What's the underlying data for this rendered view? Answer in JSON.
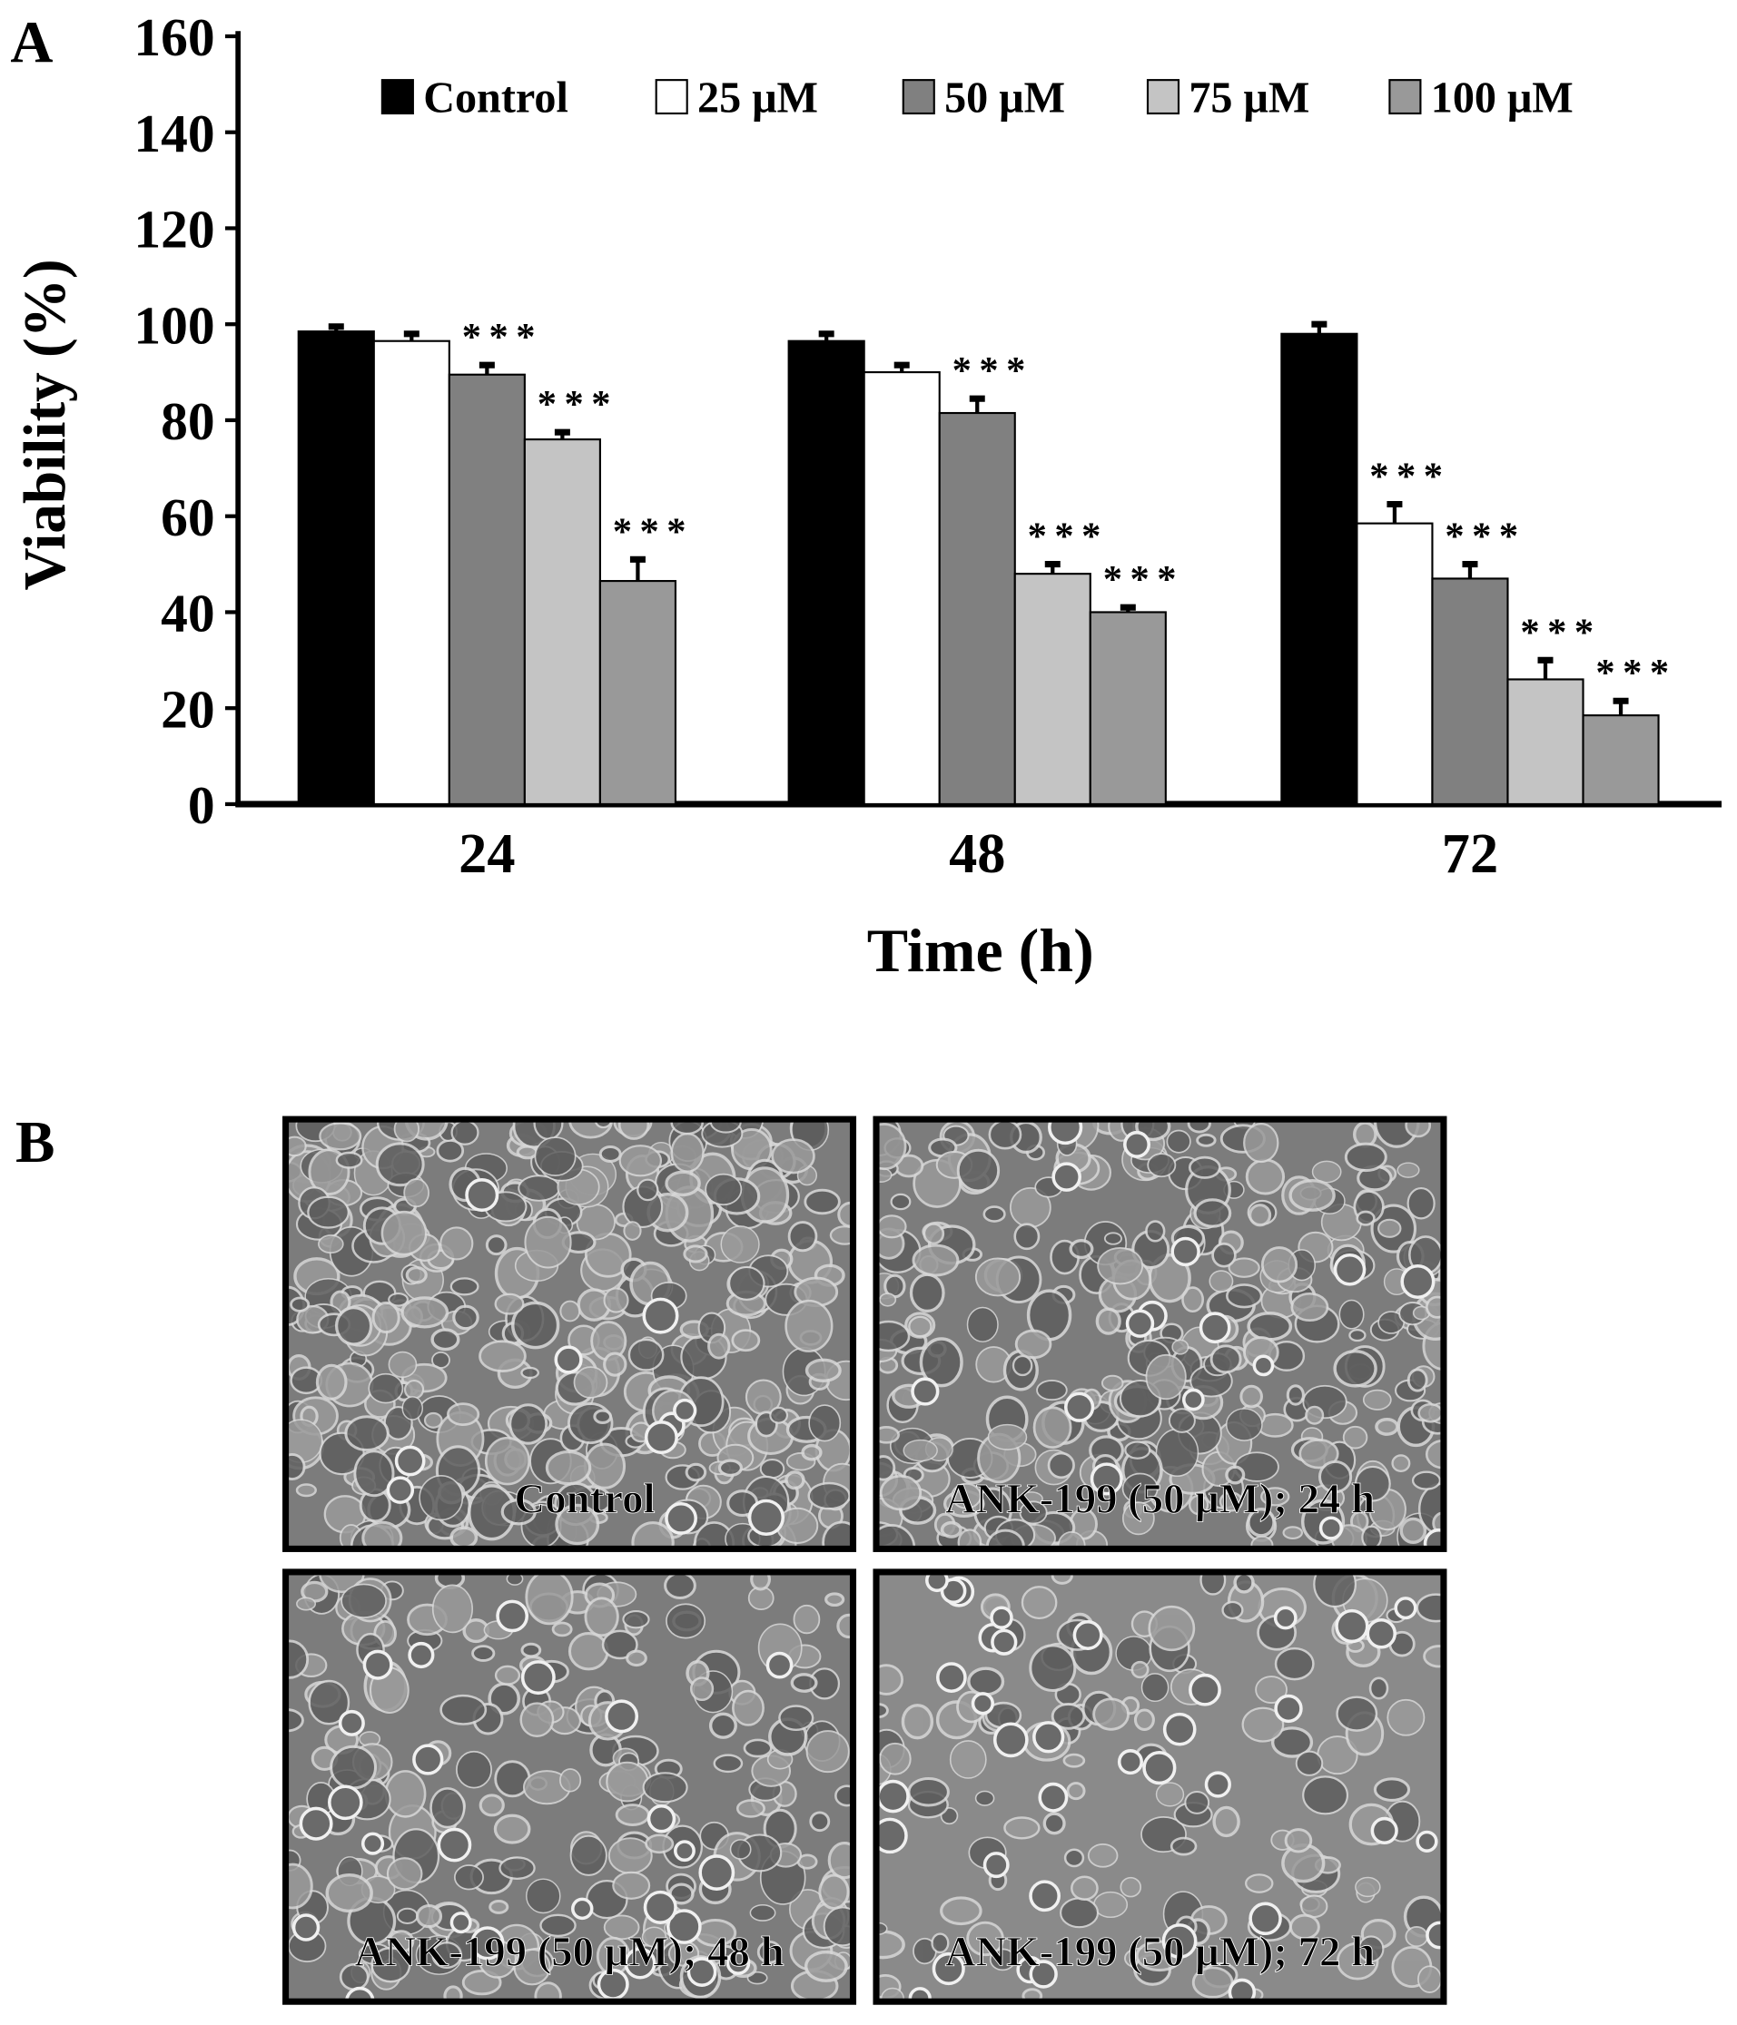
{
  "panel_a_label": "A",
  "panel_b_label": "B",
  "chart_data": {
    "type": "bar",
    "title": "",
    "xlabel": "Time (h)",
    "ylabel": "Viability (%)",
    "ylim": [
      0,
      160
    ],
    "yticks": [
      "0",
      "20",
      "40",
      "60",
      "80",
      "100",
      "120",
      "140",
      "160"
    ],
    "categories": [
      "24",
      "48",
      "72"
    ],
    "legend_position": "top",
    "series": [
      {
        "name": "Control",
        "color": "#000000",
        "values": [
          98.5,
          96.5,
          98
        ],
        "errors": [
          1,
          1.5,
          2
        ],
        "significance": [
          "",
          "",
          ""
        ]
      },
      {
        "name": "25 μM",
        "color": "#ffffff",
        "values": [
          96.5,
          90,
          58.5
        ],
        "errors": [
          1.5,
          1.5,
          4
        ],
        "significance": [
          "",
          "",
          "***"
        ]
      },
      {
        "name": "50 μM",
        "color": "#808080",
        "values": [
          89.5,
          81.5,
          47
        ],
        "errors": [
          2,
          3,
          3
        ],
        "significance": [
          "***",
          "***",
          "***"
        ]
      },
      {
        "name": "75 μM",
        "color": "#c4c4c4",
        "values": [
          76,
          48,
          26
        ],
        "errors": [
          1.5,
          2,
          4
        ],
        "significance": [
          "***",
          "***",
          "***"
        ]
      },
      {
        "name": "100 μM",
        "color": "#999999",
        "values": [
          46.5,
          40,
          18.5
        ],
        "errors": [
          4.5,
          1,
          3
        ],
        "significance": [
          "***",
          "***",
          "***"
        ]
      }
    ]
  },
  "micrographs": [
    {
      "label": "Control",
      "density": 0.9
    },
    {
      "label": "ANK-199 (50 μM); 24 h",
      "density": 0.75
    },
    {
      "label": "ANK-199 (50 μM); 48 h",
      "density": 0.5
    },
    {
      "label": "ANK-199 (50 μM); 72 h",
      "density": 0.25
    }
  ]
}
